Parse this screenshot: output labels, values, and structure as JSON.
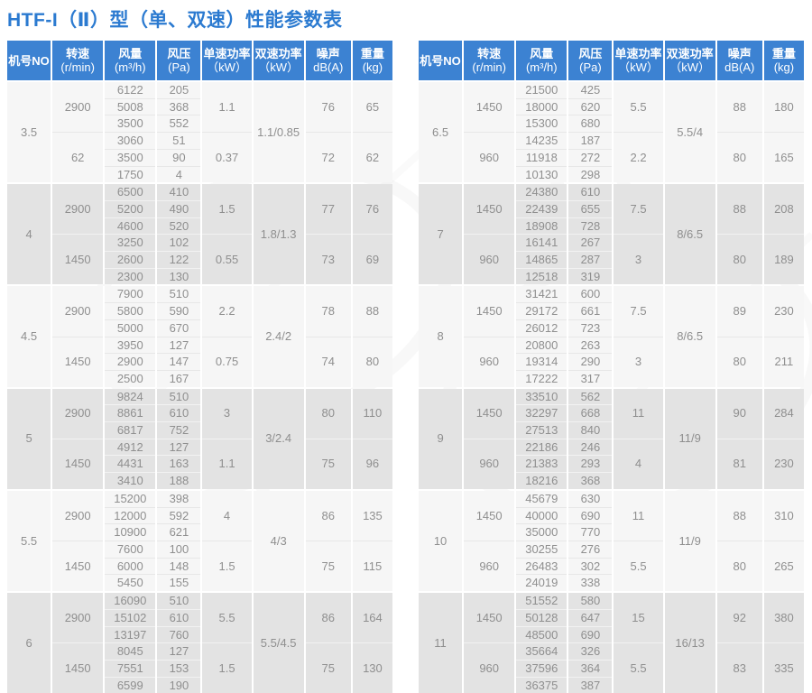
{
  "title": "HTF-I（Ⅱ）型（单、双速）性能参数表",
  "colors": {
    "accent": "#3c82d2",
    "title_text": "#2b7ad0",
    "body_text": "#8f8f8f",
    "block_light": "#f6f6f6",
    "block_dark": "#e3e3e3"
  },
  "columns": [
    {
      "l1": "机号NO",
      "l2": ""
    },
    {
      "l1": "转速",
      "l2": "(r/min)"
    },
    {
      "l1": "风量",
      "l2": "(m³/h)"
    },
    {
      "l1": "风压",
      "l2": "(Pa)"
    },
    {
      "l1": "单速功率",
      "l2": "（kW）"
    },
    {
      "l1": "双速功率",
      "l2": "（kW）"
    },
    {
      "l1": "噪声",
      "l2": "dB(A)"
    },
    {
      "l1": "重量",
      "l2": "(kg)"
    }
  ],
  "tables": [
    {
      "side": "left",
      "blocks": [
        {
          "model": "3.5",
          "shade": "light",
          "dual_power": "1.1/0.85",
          "groups": [
            {
              "speed": "2900",
              "rows": [
                [
                  "6122",
                  "205"
                ],
                [
                  "5008",
                  "368"
                ],
                [
                  "3500",
                  "552"
                ]
              ],
              "power": "1.1",
              "noise": "76",
              "weight": "65"
            },
            {
              "speed": "62",
              "rows": [
                [
                  "3060",
                  "51"
                ],
                [
                  "3500",
                  "90"
                ],
                [
                  "1750",
                  "4"
                ]
              ],
              "power": "0.37",
              "noise": "72",
              "weight": "62"
            }
          ]
        },
        {
          "model": "4",
          "shade": "dark",
          "dual_power": "1.8/1.3",
          "groups": [
            {
              "speed": "2900",
              "rows": [
                [
                  "6500",
                  "410"
                ],
                [
                  "5200",
                  "490"
                ],
                [
                  "4600",
                  "520"
                ]
              ],
              "power": "1.5",
              "noise": "77",
              "weight": "76"
            },
            {
              "speed": "1450",
              "rows": [
                [
                  "3250",
                  "102"
                ],
                [
                  "2600",
                  "122"
                ],
                [
                  "2300",
                  "130"
                ]
              ],
              "power": "0.55",
              "noise": "73",
              "weight": "69"
            }
          ]
        },
        {
          "model": "4.5",
          "shade": "light",
          "dual_power": "2.4/2",
          "groups": [
            {
              "speed": "2900",
              "rows": [
                [
                  "7900",
                  "510"
                ],
                [
                  "5800",
                  "590"
                ],
                [
                  "5000",
                  "670"
                ]
              ],
              "power": "2.2",
              "noise": "78",
              "weight": "88"
            },
            {
              "speed": "1450",
              "rows": [
                [
                  "3950",
                  "127"
                ],
                [
                  "2900",
                  "147"
                ],
                [
                  "2500",
                  "167"
                ]
              ],
              "power": "0.75",
              "noise": "74",
              "weight": "80"
            }
          ]
        },
        {
          "model": "5",
          "shade": "dark",
          "dual_power": "3/2.4",
          "groups": [
            {
              "speed": "2900",
              "rows": [
                [
                  "9824",
                  "510"
                ],
                [
                  "8861",
                  "610"
                ],
                [
                  "6817",
                  "752"
                ]
              ],
              "power": "3",
              "noise": "80",
              "weight": "110"
            },
            {
              "speed": "1450",
              "rows": [
                [
                  "4912",
                  "127"
                ],
                [
                  "4431",
                  "163"
                ],
                [
                  "3410",
                  "188"
                ]
              ],
              "power": "1.1",
              "noise": "75",
              "weight": "96"
            }
          ]
        },
        {
          "model": "5.5",
          "shade": "light",
          "dual_power": "4/3",
          "groups": [
            {
              "speed": "2900",
              "rows": [
                [
                  "15200",
                  "398"
                ],
                [
                  "12000",
                  "592"
                ],
                [
                  "10900",
                  "621"
                ]
              ],
              "power": "4",
              "noise": "86",
              "weight": "135"
            },
            {
              "speed": "1450",
              "rows": [
                [
                  "7600",
                  "100"
                ],
                [
                  "6000",
                  "148"
                ],
                [
                  "5450",
                  "155"
                ]
              ],
              "power": "1.5",
              "noise": "75",
              "weight": "115"
            }
          ]
        },
        {
          "model": "6",
          "shade": "dark",
          "dual_power": "5.5/4.5",
          "groups": [
            {
              "speed": "2900",
              "rows": [
                [
                  "16090",
                  "510"
                ],
                [
                  "15102",
                  "610"
                ],
                [
                  "13197",
                  "760"
                ]
              ],
              "power": "5.5",
              "noise": "86",
              "weight": "164"
            },
            {
              "speed": "1450",
              "rows": [
                [
                  "8045",
                  "127"
                ],
                [
                  "7551",
                  "153"
                ],
                [
                  "6599",
                  "190"
                ]
              ],
              "power": "1.5",
              "noise": "75",
              "weight": "130"
            }
          ]
        }
      ]
    },
    {
      "side": "right",
      "blocks": [
        {
          "model": "6.5",
          "shade": "light",
          "dual_power": "5.5/4",
          "groups": [
            {
              "speed": "1450",
              "rows": [
                [
                  "21500",
                  "425"
                ],
                [
                  "18000",
                  "620"
                ],
                [
                  "15300",
                  "680"
                ]
              ],
              "power": "5.5",
              "noise": "88",
              "weight": "180"
            },
            {
              "speed": "960",
              "rows": [
                [
                  "14235",
                  "187"
                ],
                [
                  "11918",
                  "272"
                ],
                [
                  "10130",
                  "298"
                ]
              ],
              "power": "2.2",
              "noise": "80",
              "weight": "165"
            }
          ]
        },
        {
          "model": "7",
          "shade": "dark",
          "dual_power": "8/6.5",
          "groups": [
            {
              "speed": "1450",
              "rows": [
                [
                  "24380",
                  "610"
                ],
                [
                  "22439",
                  "655"
                ],
                [
                  "18908",
                  "728"
                ]
              ],
              "power": "7.5",
              "noise": "88",
              "weight": "208"
            },
            {
              "speed": "960",
              "rows": [
                [
                  "16141",
                  "267"
                ],
                [
                  "14865",
                  "287"
                ],
                [
                  "12518",
                  "319"
                ]
              ],
              "power": "3",
              "noise": "80",
              "weight": "189"
            }
          ]
        },
        {
          "model": "8",
          "shade": "light",
          "dual_power": "8/6.5",
          "groups": [
            {
              "speed": "1450",
              "rows": [
                [
                  "31421",
                  "600"
                ],
                [
                  "29172",
                  "661"
                ],
                [
                  "26012",
                  "723"
                ]
              ],
              "power": "7.5",
              "noise": "89",
              "weight": "230"
            },
            {
              "speed": "960",
              "rows": [
                [
                  "20800",
                  "263"
                ],
                [
                  "19314",
                  "290"
                ],
                [
                  "17222",
                  "317"
                ]
              ],
              "power": "3",
              "noise": "80",
              "weight": "211"
            }
          ]
        },
        {
          "model": "9",
          "shade": "dark",
          "dual_power": "11/9",
          "groups": [
            {
              "speed": "1450",
              "rows": [
                [
                  "33510",
                  "562"
                ],
                [
                  "32297",
                  "668"
                ],
                [
                  "27513",
                  "840"
                ]
              ],
              "power": "11",
              "noise": "90",
              "weight": "284"
            },
            {
              "speed": "960",
              "rows": [
                [
                  "22186",
                  "246"
                ],
                [
                  "21383",
                  "293"
                ],
                [
                  "18216",
                  "368"
                ]
              ],
              "power": "4",
              "noise": "81",
              "weight": "230"
            }
          ]
        },
        {
          "model": "10",
          "shade": "light",
          "dual_power": "11/9",
          "groups": [
            {
              "speed": "1450",
              "rows": [
                [
                  "45679",
                  "630"
                ],
                [
                  "40000",
                  "690"
                ],
                [
                  "35000",
                  "770"
                ]
              ],
              "power": "11",
              "noise": "88",
              "weight": "310"
            },
            {
              "speed": "960",
              "rows": [
                [
                  "30255",
                  "276"
                ],
                [
                  "26483",
                  "302"
                ],
                [
                  "24019",
                  "338"
                ]
              ],
              "power": "5.5",
              "noise": "80",
              "weight": "265"
            }
          ]
        },
        {
          "model": "11",
          "shade": "dark",
          "dual_power": "16/13",
          "groups": [
            {
              "speed": "1450",
              "rows": [
                [
                  "51552",
                  "580"
                ],
                [
                  "50128",
                  "647"
                ],
                [
                  "48500",
                  "690"
                ]
              ],
              "power": "15",
              "noise": "92",
              "weight": "380"
            },
            {
              "speed": "960",
              "rows": [
                [
                  "35664",
                  "326"
                ],
                [
                  "37596",
                  "364"
                ],
                [
                  "36375",
                  "387"
                ]
              ],
              "power": "5.5",
              "noise": "83",
              "weight": "335"
            }
          ]
        }
      ]
    }
  ]
}
